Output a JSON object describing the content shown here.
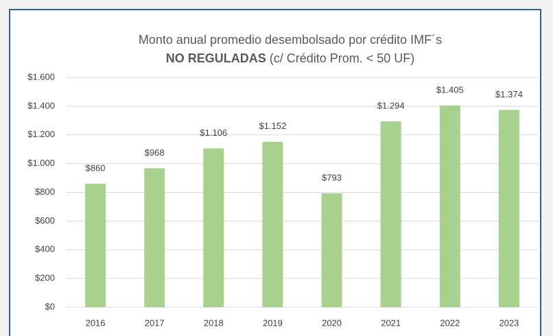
{
  "chart_data": {
    "type": "bar",
    "title": "Monto anual promedio desembolsado por crédito IMF´s",
    "subtitle_bold": "NO REGULADAS",
    "subtitle": "(c/ Crédito Prom. < 50 UF)",
    "categories": [
      "2016",
      "2017",
      "2018",
      "2019",
      "2020",
      "2021",
      "2022",
      "2023"
    ],
    "values": [
      860,
      968,
      1106,
      1152,
      793,
      1294,
      1405,
      1374
    ],
    "value_labels": [
      "$860",
      "$968",
      "$1.106",
      "$1.152",
      "$793",
      "$1.294",
      "$1.405",
      "$1.374"
    ],
    "color": "#a9d18e",
    "ylim": [
      0,
      1600
    ],
    "yticks": [
      {
        "value": 0,
        "label": "$0"
      },
      {
        "value": 200,
        "label": "$200"
      },
      {
        "value": 400,
        "label": "$400"
      },
      {
        "value": 600,
        "label": "$600"
      },
      {
        "value": 800,
        "label": "$800"
      },
      {
        "value": 1000,
        "label": "$1.000"
      },
      {
        "value": 1200,
        "label": "$1.200"
      },
      {
        "value": 1400,
        "label": "$1.400"
      },
      {
        "value": 1600,
        "label": "$1.600"
      }
    ],
    "grid": true
  }
}
